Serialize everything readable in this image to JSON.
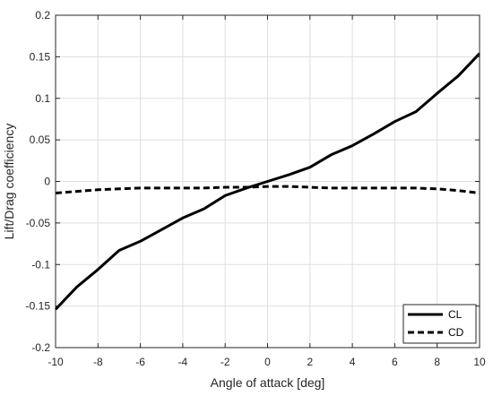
{
  "chart_data": {
    "type": "line",
    "title": "",
    "xlabel": "Angle of attack [deg]",
    "ylabel": "Lift/Drag coefficiency",
    "xlim": [
      -10,
      10
    ],
    "ylim": [
      -0.2,
      0.2
    ],
    "grid": true,
    "legend_position": "bottom-right",
    "x": [
      -10,
      -9,
      -8,
      -7,
      -6,
      -5,
      -4,
      -3,
      -2,
      -1,
      0,
      1,
      2,
      3,
      4,
      5,
      6,
      7,
      8,
      9,
      10
    ],
    "x_ticks": [
      "-10",
      "-8",
      "-6",
      "-4",
      "-2",
      "0",
      "2",
      "4",
      "6",
      "8",
      "10"
    ],
    "y_ticks": [
      "-0.2",
      "-0.15",
      "-0.1",
      "-0.05",
      "0",
      "0.05",
      "0.1",
      "0.15",
      "0.2"
    ],
    "series": [
      {
        "name": "CL",
        "style": "solid",
        "color": "#000000",
        "values": [
          -0.154,
          -0.127,
          -0.106,
          -0.083,
          -0.072,
          -0.058,
          -0.044,
          -0.033,
          -0.017,
          -0.008,
          0.0,
          0.008,
          0.017,
          0.032,
          0.043,
          0.057,
          0.072,
          0.084,
          0.106,
          0.127,
          0.154
        ]
      },
      {
        "name": "CD",
        "style": "dashed",
        "color": "#000000",
        "values": [
          -0.014,
          -0.012,
          -0.01,
          -0.009,
          -0.008,
          -0.008,
          -0.008,
          -0.008,
          -0.007,
          -0.007,
          -0.006,
          -0.006,
          -0.007,
          -0.008,
          -0.008,
          -0.008,
          -0.008,
          -0.008,
          -0.009,
          -0.011,
          -0.014
        ]
      }
    ]
  }
}
